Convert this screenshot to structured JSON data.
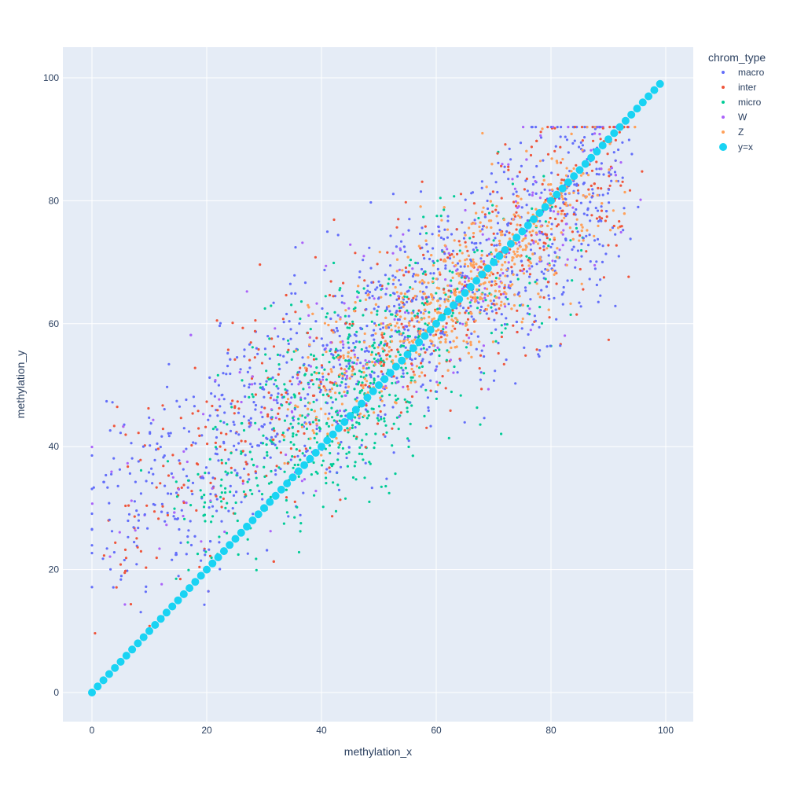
{
  "chart_data": {
    "type": "scatter",
    "title": "",
    "xlabel": "methylation_x",
    "ylabel": "methylation_y",
    "xlim": [
      -5,
      105
    ],
    "ylim": [
      -5,
      105
    ],
    "x_ticks": [
      0,
      20,
      40,
      60,
      80,
      100
    ],
    "y_ticks": [
      0,
      20,
      40,
      60,
      80,
      100
    ],
    "grid": true,
    "legend": {
      "title": "chrom_type",
      "placement": "top-right, outside plot"
    },
    "series": [
      {
        "name": "macro",
        "color": "#636efa",
        "marker": "small-dot",
        "point_count_shown": 1100,
        "distribution": "dense cloud spanning x 0-95, y 3-92, correlated with y=x; above the diagonal at low x, below at high x"
      },
      {
        "name": "inter",
        "color": "#ef553b",
        "marker": "small-dot",
        "point_count_shown": 550,
        "distribution": "same cloud shape as macro, sparser"
      },
      {
        "name": "micro",
        "color": "#00cc96",
        "marker": "small-dot",
        "point_count_shown": 650,
        "distribution": "concentrated around x 30-60, y 40-60"
      },
      {
        "name": "W",
        "color": "#ab63fa",
        "marker": "small-dot",
        "point_count_shown": 250,
        "distribution": "sparse, same cloud shape"
      },
      {
        "name": "Z",
        "color": "#ffa15a",
        "marker": "small-dot",
        "point_count_shown": 1000,
        "distribution": "dense band around x 50-85, y 50-85, above the diagonal"
      },
      {
        "name": "y=x",
        "color": "#19d3f3",
        "marker": "large-circle",
        "x": [
          0,
          1,
          2,
          3,
          4,
          5,
          6,
          7,
          8,
          9,
          10,
          11,
          12,
          13,
          14,
          15,
          16,
          17,
          18,
          19,
          20,
          21,
          22,
          23,
          24,
          25,
          26,
          27,
          28,
          29,
          30,
          31,
          32,
          33,
          34,
          35,
          36,
          37,
          38,
          39,
          40,
          41,
          42,
          43,
          44,
          45,
          46,
          47,
          48,
          49,
          50,
          51,
          52,
          53,
          54,
          55,
          56,
          57,
          58,
          59,
          60,
          61,
          62,
          63,
          64,
          65,
          66,
          67,
          68,
          69,
          70,
          71,
          72,
          73,
          74,
          75,
          76,
          77,
          78,
          79,
          80,
          81,
          82,
          83,
          84,
          85,
          86,
          87,
          88,
          89,
          90,
          91,
          92,
          93,
          94,
          95,
          96,
          97,
          98,
          99
        ],
        "y": [
          0,
          1,
          2,
          3,
          4,
          5,
          6,
          7,
          8,
          9,
          10,
          11,
          12,
          13,
          14,
          15,
          16,
          17,
          18,
          19,
          20,
          21,
          22,
          23,
          24,
          25,
          26,
          27,
          28,
          29,
          30,
          31,
          32,
          33,
          34,
          35,
          36,
          37,
          38,
          39,
          40,
          41,
          42,
          43,
          44,
          45,
          46,
          47,
          48,
          49,
          50,
          51,
          52,
          53,
          54,
          55,
          56,
          57,
          58,
          59,
          60,
          61,
          62,
          63,
          64,
          65,
          66,
          67,
          68,
          69,
          70,
          71,
          72,
          73,
          74,
          75,
          76,
          77,
          78,
          79,
          80,
          81,
          82,
          83,
          84,
          85,
          86,
          87,
          88,
          89,
          90,
          91,
          92,
          93,
          94,
          95,
          96,
          97,
          98,
          99
        ]
      }
    ]
  },
  "colors": {
    "plot_background": "#e5ecf6",
    "grid": "#ffffff",
    "text": "#2a3f5f"
  }
}
